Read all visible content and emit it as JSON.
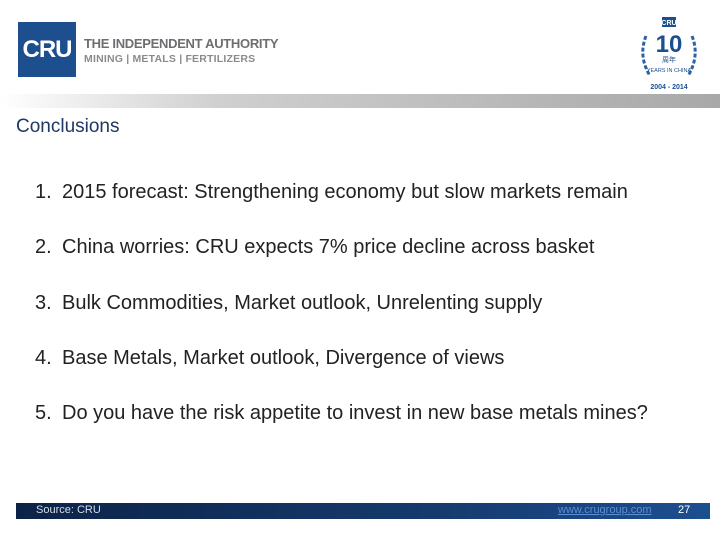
{
  "header": {
    "logo_text": "CRU",
    "tagline": "THE INDEPENDENT AUTHORITY",
    "sectors": "MINING | METALS | FERTILIZERS",
    "badge": {
      "brand": "CRU",
      "number": "10",
      "chinese": "周年",
      "caption": "YEARS IN CHINA",
      "years": "2004 - 2014"
    }
  },
  "title": "Conclusions",
  "items": [
    {
      "number": "1.",
      "text": "2015 forecast: Strengthening economy but slow markets remain"
    },
    {
      "number": "2.",
      "text": "China worries: CRU expects 7% price decline across basket"
    },
    {
      "number": "3.",
      "text": "Bulk Commodities, Market outlook, Unrelenting supply"
    },
    {
      "number": "4.",
      "text": "Base Metals, Market outlook, Divergence of views"
    },
    {
      "number": "5.",
      "text": "Do you have the risk appetite to invest in new base metals mines?"
    }
  ],
  "footer": {
    "source": "Source: CRU",
    "url": "www.crugroup.com",
    "page": "27"
  }
}
